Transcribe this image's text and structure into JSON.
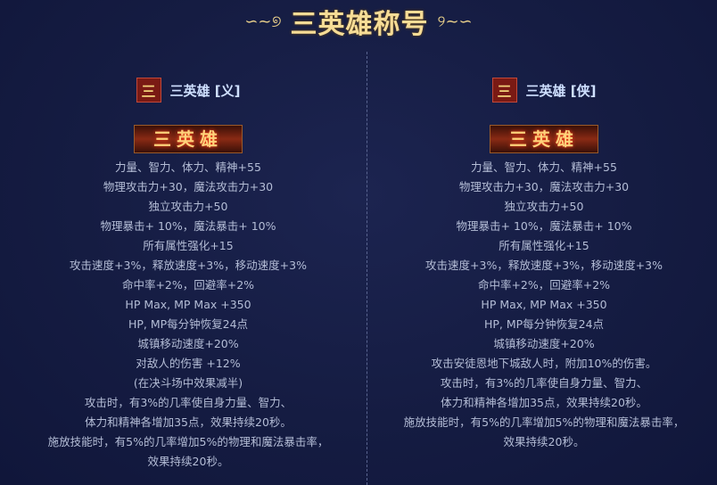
{
  "title": "三英雄称号",
  "columns": [
    {
      "badge": "三",
      "name": "三英雄 [义]",
      "banner": "三英雄",
      "lines": [
        "力量、智力、体力、精神+55",
        "物理攻击力+30，魔法攻击力+30",
        "独立攻击力+50",
        "物理暴击+ 10%，魔法暴击+ 10%",
        "所有属性强化+15",
        "攻击速度+3%，释放速度+3%，移动速度+3%",
        "命中率+2%，回避率+2%",
        "HP Max, MP Max +350",
        "HP, MP每分钟恢复24点",
        "城镇移动速度+20%",
        "对敌人的伤害 +12%",
        "(在决斗场中效果减半)",
        "攻击时，有3%的几率使自身力量、智力、",
        "体力和精神各增加35点，效果持续20秒。",
        "施放技能时，有5%的几率增加5%的物理和魔法暴击率，",
        "效果持续20秒。"
      ]
    },
    {
      "badge": "三",
      "name": "三英雄 [侠]",
      "banner": "三英雄",
      "lines": [
        "力量、智力、体力、精神+55",
        "物理攻击力+30，魔法攻击力+30",
        "独立攻击力+50",
        "物理暴击+ 10%，魔法暴击+ 10%",
        "所有属性强化+15",
        "攻击速度+3%，释放速度+3%，移动速度+3%",
        "命中率+2%，回避率+2%",
        "HP Max, MP Max +350",
        "HP, MP每分钟恢复24点",
        "城镇移动速度+20%",
        "攻击安徒恩地下城敌人时，附加10%的伤害。",
        "攻击时，有3%的几率使自身力量、智力、",
        "体力和精神各增加35点，效果持续20秒。",
        "施放技能时，有5%的几率增加5%的物理和魔法暴击率，",
        "效果持续20秒。"
      ]
    }
  ]
}
